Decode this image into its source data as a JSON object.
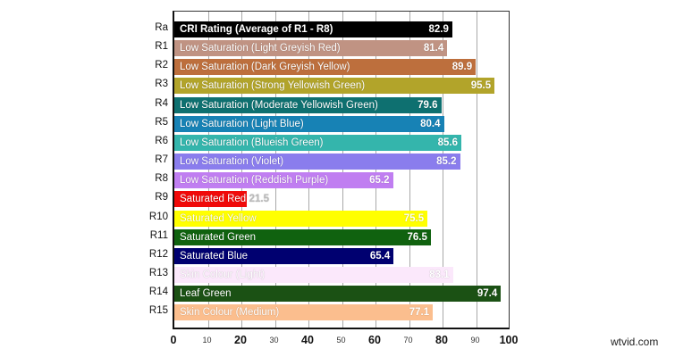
{
  "chart_data": {
    "type": "bar",
    "orientation": "horizontal",
    "title": "",
    "xlabel": "",
    "ylabel": "",
    "xlim": [
      0,
      100
    ],
    "grid": true,
    "legend": "none",
    "x_ticks": [
      {
        "value": 0,
        "label": "0",
        "major": true
      },
      {
        "value": 10,
        "label": "10",
        "major": false
      },
      {
        "value": 20,
        "label": "20",
        "major": true
      },
      {
        "value": 30,
        "label": "30",
        "major": false
      },
      {
        "value": 40,
        "label": "40",
        "major": true
      },
      {
        "value": 50,
        "label": "50",
        "major": false
      },
      {
        "value": 60,
        "label": "60",
        "major": true
      },
      {
        "value": 70,
        "label": "70",
        "major": false
      },
      {
        "value": 80,
        "label": "80",
        "major": true
      },
      {
        "value": 90,
        "label": "90",
        "major": false
      },
      {
        "value": 100,
        "label": "100",
        "major": true
      }
    ],
    "categories": [
      "Ra",
      "R1",
      "R2",
      "R3",
      "R4",
      "R5",
      "R6",
      "R7",
      "R8",
      "R9",
      "R10",
      "R11",
      "R12",
      "R13",
      "R14",
      "R15"
    ],
    "values": [
      82.9,
      81.4,
      89.9,
      95.5,
      79.6,
      80.4,
      85.6,
      85.2,
      65.2,
      21.5,
      75.5,
      76.5,
      65.4,
      83.1,
      97.4,
      77.1
    ],
    "bars": [
      {
        "code": "Ra",
        "label": "CRI Rating (Average of R1 - R8)",
        "value": 82.9,
        "value_label": "82.9",
        "color": "#000000",
        "text_color": "#ffffff"
      },
      {
        "code": "R1",
        "label": "Low Saturation (Light Greyish Red)",
        "value": 81.4,
        "value_label": "81.4",
        "color": "#c09383",
        "text_color": "#ffffff"
      },
      {
        "code": "R2",
        "label": "Low Saturation (Dark Greyish Yellow)",
        "value": 89.9,
        "value_label": "89.9",
        "color": "#bd6f3d",
        "text_color": "#ffffff"
      },
      {
        "code": "R3",
        "label": "Low Saturation (Strong Yellowish Green)",
        "value": 95.5,
        "value_label": "95.5",
        "color": "#b2a42a",
        "text_color": "#ffffff"
      },
      {
        "code": "R4",
        "label": "Low Saturation (Moderate Yellowish Green)",
        "value": 79.6,
        "value_label": "79.6",
        "color": "#0e7070",
        "text_color": "#ffffff"
      },
      {
        "code": "R5",
        "label": "Low Saturation (Light Blue)",
        "value": 80.4,
        "value_label": "80.4",
        "color": "#1782b5",
        "text_color": "#ffffff"
      },
      {
        "code": "R6",
        "label": "Low Saturation (Blueish Green)",
        "value": 85.6,
        "value_label": "85.6",
        "color": "#34b5ac",
        "text_color": "#ffffff"
      },
      {
        "code": "R7",
        "label": "Low Saturation (Violet)",
        "value": 85.2,
        "value_label": "85.2",
        "color": "#8a7ded",
        "text_color": "#ffffff"
      },
      {
        "code": "R8",
        "label": "Low Saturation (Reddish Purple)",
        "value": 65.2,
        "value_label": "65.2",
        "color": "#c07ef1",
        "text_color": "#ffffff"
      },
      {
        "code": "R9",
        "label": "Saturated Red",
        "value": 21.5,
        "value_label": "21.5",
        "color": "#f00a0a",
        "text_color": "#ffffff",
        "value_outside": true
      },
      {
        "code": "R10",
        "label": "Saturated Yellow",
        "value": 75.5,
        "value_label": "75.5",
        "color": "#ffff00",
        "text_color": "#ffffff"
      },
      {
        "code": "R11",
        "label": "Saturated Green",
        "value": 76.5,
        "value_label": "76.5",
        "color": "#10620f",
        "text_color": "#ffffff"
      },
      {
        "code": "R12",
        "label": "Saturated Blue",
        "value": 65.4,
        "value_label": "65.4",
        "color": "#000070",
        "text_color": "#ffffff"
      },
      {
        "code": "R13",
        "label": "Skin Colour (Light)",
        "value": 83.1,
        "value_label": "83.1",
        "color": "#fbe8fb",
        "text_color": "#ffffff"
      },
      {
        "code": "R14",
        "label": "Leaf Green",
        "value": 97.4,
        "value_label": "97.4",
        "color": "#1b5114",
        "text_color": "#ffffff"
      },
      {
        "code": "R15",
        "label": "Skin Colour (Medium)",
        "value": 77.1,
        "value_label": "77.1",
        "color": "#fbbe8e",
        "text_color": "#ffffff"
      }
    ]
  },
  "watermark": "wtvid.com"
}
